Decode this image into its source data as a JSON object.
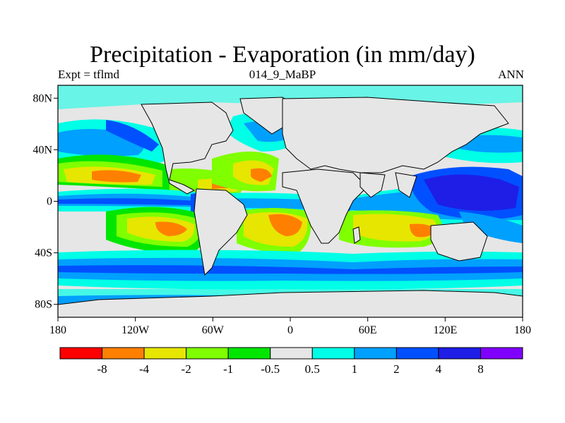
{
  "title": "Precipitation - Evaporation (in mm/day)",
  "subtitle_left": "Expt = tflmd",
  "subtitle_center": "014_9_MaBP",
  "subtitle_right": "ANN",
  "lon_ticks": [
    "180",
    "120W",
    "60W",
    "0",
    "60E",
    "120E",
    "180"
  ],
  "lat_ticks": [
    "80N",
    "40N",
    "0",
    "40S",
    "80S"
  ],
  "colorbar": {
    "colors": [
      "#ff0000",
      "#ff8000",
      "#e6e600",
      "#80ff00",
      "#00e600",
      "#e6e6e6",
      "#00ffe6",
      "#00a0ff",
      "#0050ff",
      "#1e1ee6",
      "#8000ff"
    ],
    "labels": [
      "-8",
      "-4",
      "-2",
      "-1",
      "-0.5",
      "0.5",
      "1",
      "2",
      "4",
      "8"
    ]
  },
  "chart_data": {
    "type": "heatmap",
    "title": "Precipitation - Evaporation (in mm/day)",
    "xlabel": "",
    "ylabel": "",
    "xlim": [
      -180,
      180
    ],
    "ylim": [
      -90,
      90
    ],
    "contour_levels": [
      -8,
      -4,
      -2,
      -1,
      -0.5,
      0.5,
      1,
      2,
      4,
      8
    ]
  }
}
